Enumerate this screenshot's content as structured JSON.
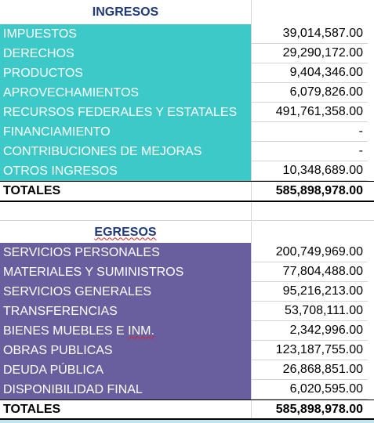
{
  "ingresos": {
    "title": "INGRESOS",
    "rows": [
      {
        "label": "IMPUESTOS",
        "value": "39,014,587.00"
      },
      {
        "label": "DERECHOS",
        "value": "29,290,172.00"
      },
      {
        "label": "PRODUCTOS",
        "value": "9,404,346.00"
      },
      {
        "label": "APROVECHAMIENTOS",
        "value": "6,079,826.00"
      },
      {
        "label": "RECURSOS FEDERALES Y ESTATALES",
        "value": "491,761,358.00"
      },
      {
        "label": "FINANCIAMIENTO",
        "value": "-"
      },
      {
        "label": "CONTRIBUCIONES DE MEJORAS",
        "value": "-"
      },
      {
        "label": "OTROS INGRESOS",
        "value": "10,348,689.00"
      }
    ],
    "total_label": "TOTALES",
    "total_value": "585,898,978.00"
  },
  "egresos": {
    "title": "EGRESOS",
    "rows": [
      {
        "label": "SERVICIOS PERSONALES",
        "value": "200,749,969.00"
      },
      {
        "label": "MATERIALES Y SUMINISTROS",
        "value": "77,804,488.00"
      },
      {
        "label": "SERVICIOS GENERALES",
        "value": "95,216,213.00"
      },
      {
        "label": "TRANSFERENCIAS",
        "value": "53,708,111.00"
      },
      {
        "label": "BIENES MUEBLES E INM.",
        "value": "2,342,996.00"
      },
      {
        "label": "OBRAS PUBLICAS",
        "value": "123,187,755.00"
      },
      {
        "label": "DEUDA PÚBLICA",
        "value": "26,868,851.00"
      },
      {
        "label": "DISPONIBILIDAD FINAL",
        "value": "6,020,595.00"
      }
    ],
    "total_label": "TOTALES",
    "total_value": "585,898,978.00"
  },
  "colors": {
    "ingresos_fill": "#3ec9c9",
    "egresos_fill": "#6a5f9e",
    "header_text": "#1f3a7a"
  }
}
